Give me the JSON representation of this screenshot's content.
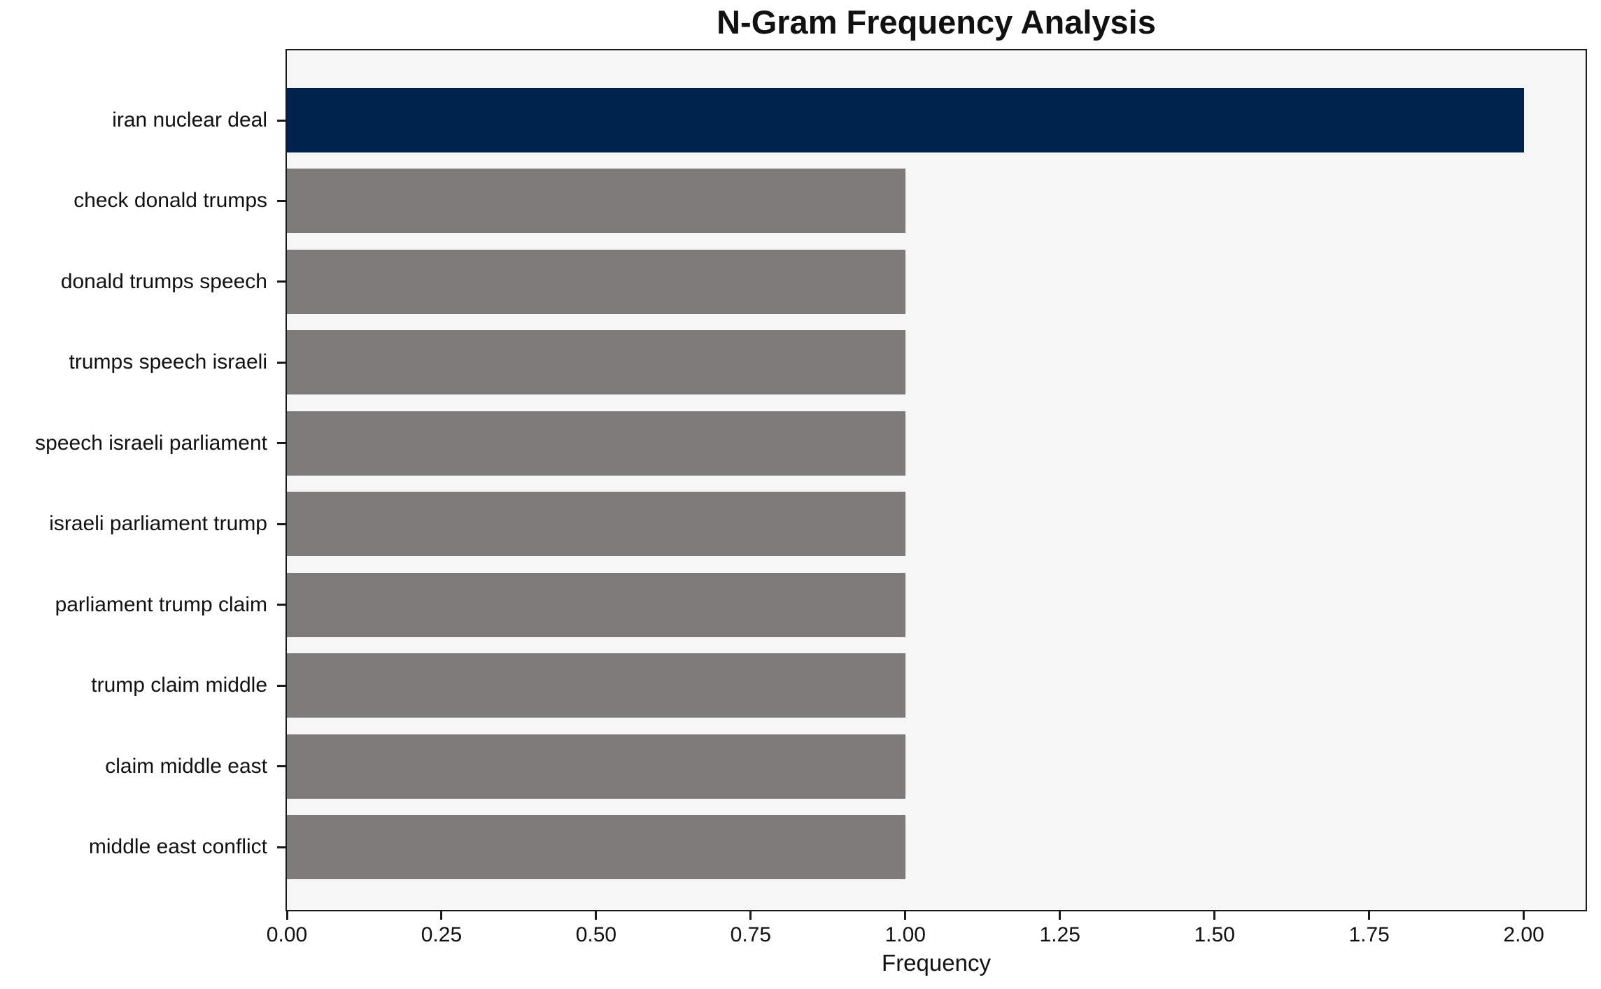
{
  "chart_data": {
    "type": "bar",
    "orientation": "horizontal",
    "title": "N-Gram Frequency Analysis",
    "xlabel": "Frequency",
    "ylabel": "",
    "categories": [
      "iran nuclear deal",
      "check donald trumps",
      "donald trumps speech",
      "trumps speech israeli",
      "speech israeli parliament",
      "israeli parliament trump",
      "parliament trump claim",
      "trump claim middle",
      "claim middle east",
      "middle east conflict"
    ],
    "values": [
      2,
      1,
      1,
      1,
      1,
      1,
      1,
      1,
      1,
      1
    ],
    "bar_colors": [
      "#00234e",
      "#7c7b79",
      "#7c7b79",
      "#7c7b79",
      "#7c7b79",
      "#7c7b79",
      "#7c7b79",
      "#7c7b79",
      "#7c7b79",
      "#7c7b79"
    ],
    "xlim": [
      0,
      2.1
    ],
    "xticks": [
      {
        "value": 0.0,
        "label": "0.00"
      },
      {
        "value": 0.25,
        "label": "0.25"
      },
      {
        "value": 0.5,
        "label": "0.50"
      },
      {
        "value": 0.75,
        "label": "0.75"
      },
      {
        "value": 1.0,
        "label": "1.00"
      },
      {
        "value": 1.25,
        "label": "1.25"
      },
      {
        "value": 1.5,
        "label": "1.50"
      },
      {
        "value": 1.75,
        "label": "1.75"
      },
      {
        "value": 2.0,
        "label": "2.00"
      }
    ],
    "colors": {
      "highlight_bar": "#00234e",
      "default_bar": "#7c7b79",
      "plot_background": "#f6f6f6",
      "figure_background": "#ffffff",
      "spine": "#1a1a1a",
      "text": "#111111"
    },
    "legend": null,
    "grid": false
  }
}
